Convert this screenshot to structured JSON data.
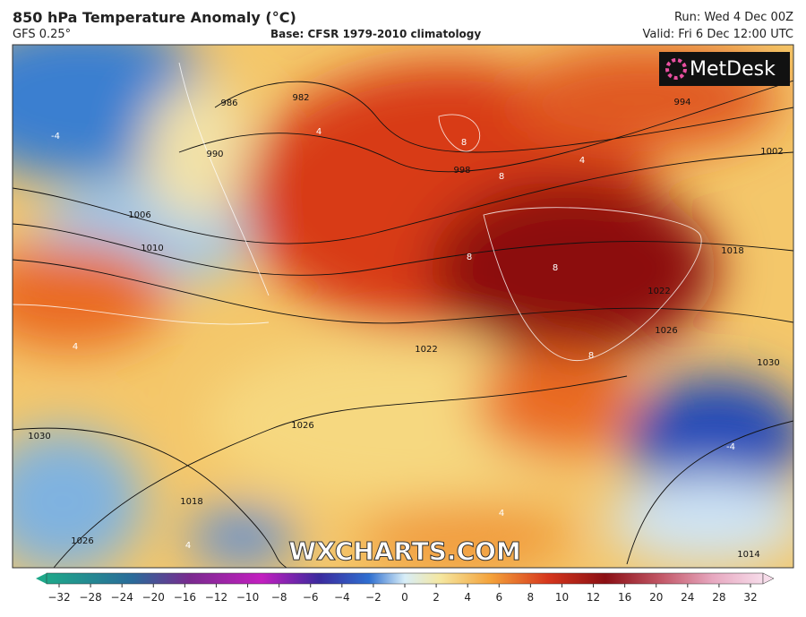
{
  "header": {
    "title": "850 hPa Temperature Anomaly (°C)",
    "model": "GFS 0.25°",
    "base": "Base: CFSR 1979-2010 climatology",
    "run": "Run: Wed 4 Dec 00Z",
    "valid": "Valid: Fri 6 Dec 12:00 UTC"
  },
  "logo": "MetDesk",
  "watermark": "WXCHARTS.COM",
  "isobar_labels": [
    "986",
    "982",
    "990",
    "994",
    "998",
    "1002",
    "1006",
    "1010",
    "1018",
    "1022",
    "1026",
    "1030",
    "1022",
    "1018",
    "1026",
    "1030",
    "1026",
    "1014"
  ],
  "anomaly_labels": [
    "8",
    "8",
    "8",
    "8",
    "8",
    "4",
    "-4",
    "4",
    "4",
    "-4",
    "4",
    "4"
  ],
  "colorbar": {
    "ticks": [
      "−32",
      "−28",
      "−24",
      "−20",
      "−16",
      "−12",
      "−10",
      "−8",
      "−6",
      "−4",
      "−2",
      "0",
      "2",
      "4",
      "6",
      "8",
      "10",
      "12",
      "16",
      "20",
      "24",
      "28",
      "32"
    ]
  }
}
